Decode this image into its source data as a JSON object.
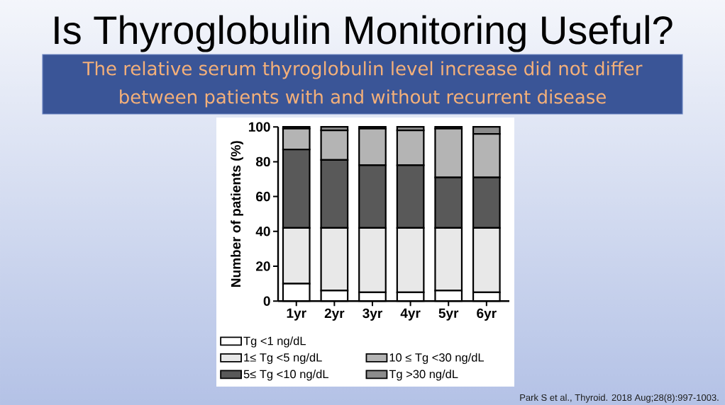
{
  "chart_data": {
    "type": "bar",
    "title": "Is Thyroglobulin Monitoring Useful?",
    "ylabel": "Number of patients (%)",
    "categories": [
      "1yr",
      "2yr",
      "3yr",
      "4yr",
      "5yr",
      "6yr"
    ],
    "stacked": true,
    "series": [
      {
        "name": "Tg <1 ng/dL",
        "color": "#ffffff",
        "values": [
          10,
          6,
          5,
          5,
          6,
          5
        ]
      },
      {
        "name": "1≤ Tg <5 ng/dL",
        "color": "#e8e8e8",
        "values": [
          32,
          36,
          37,
          37,
          36,
          37
        ]
      },
      {
        "name": "5≤ Tg <10 ng/dL",
        "color": "#595959",
        "values": [
          45,
          39,
          36,
          36,
          29,
          29
        ]
      },
      {
        "name": "10 ≤ Tg <30 ng/dL",
        "color": "#b4b4b4",
        "values": [
          12,
          17,
          21,
          20,
          28,
          25
        ]
      },
      {
        "name": "Tg >30 ng/dL",
        "color": "#8c8c8c",
        "values": [
          1,
          2,
          1,
          2,
          1,
          4
        ]
      }
    ],
    "ylim": [
      0,
      100
    ],
    "yticks": [
      0,
      20,
      40,
      60,
      80,
      100
    ],
    "legend": "bottom",
    "annotations": [
      "The relative serum thyroglobulin level increase did not differ between patients with and without recurrent disease",
      "Park S et al., Thyroid. 2018 Aug;28(8):997-1003."
    ]
  }
}
